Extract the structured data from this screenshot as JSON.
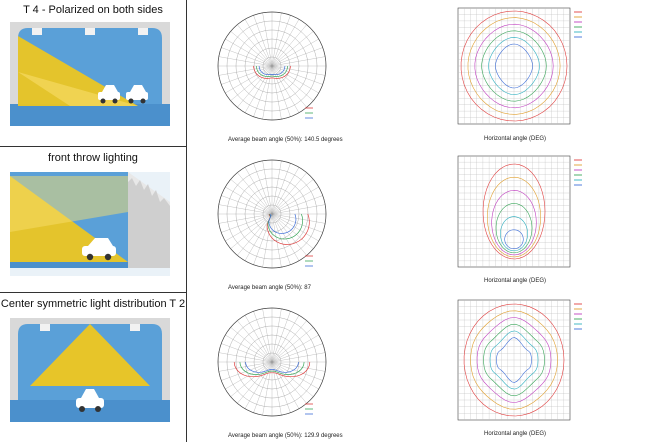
{
  "rows": [
    {
      "title": "T 4 - Polarized on both sides",
      "beam_caption": "Average beam angle (50%): 140.5 degrees",
      "h_axis_label": "Horizontal angle (DEG)"
    },
    {
      "title": "front throw lighting",
      "beam_caption": "Average beam angle (50%): 87",
      "h_axis_label": "Horizontal angle (DEG)"
    },
    {
      "title": "Center symmetric light distribution T 2",
      "beam_caption": "Average beam angle (50%): 129.9 degrees",
      "h_axis_label": "Horizontal angle (DEG)"
    }
  ],
  "colors": {
    "sky": "#5aa0d8",
    "sky_dark": "#3f86c4",
    "beam_yellow": "#f3c81a",
    "grid": "#999999",
    "red": "#e04040",
    "green": "#3aa65a",
    "blue": "#3f6fd8",
    "magenta": "#c040c0",
    "cyan": "#30b0c0",
    "orange": "#e0a030"
  },
  "icons": [
    "car-icon",
    "lamp-icon",
    "polar-grid-icon",
    "isolux-grid-icon"
  ]
}
